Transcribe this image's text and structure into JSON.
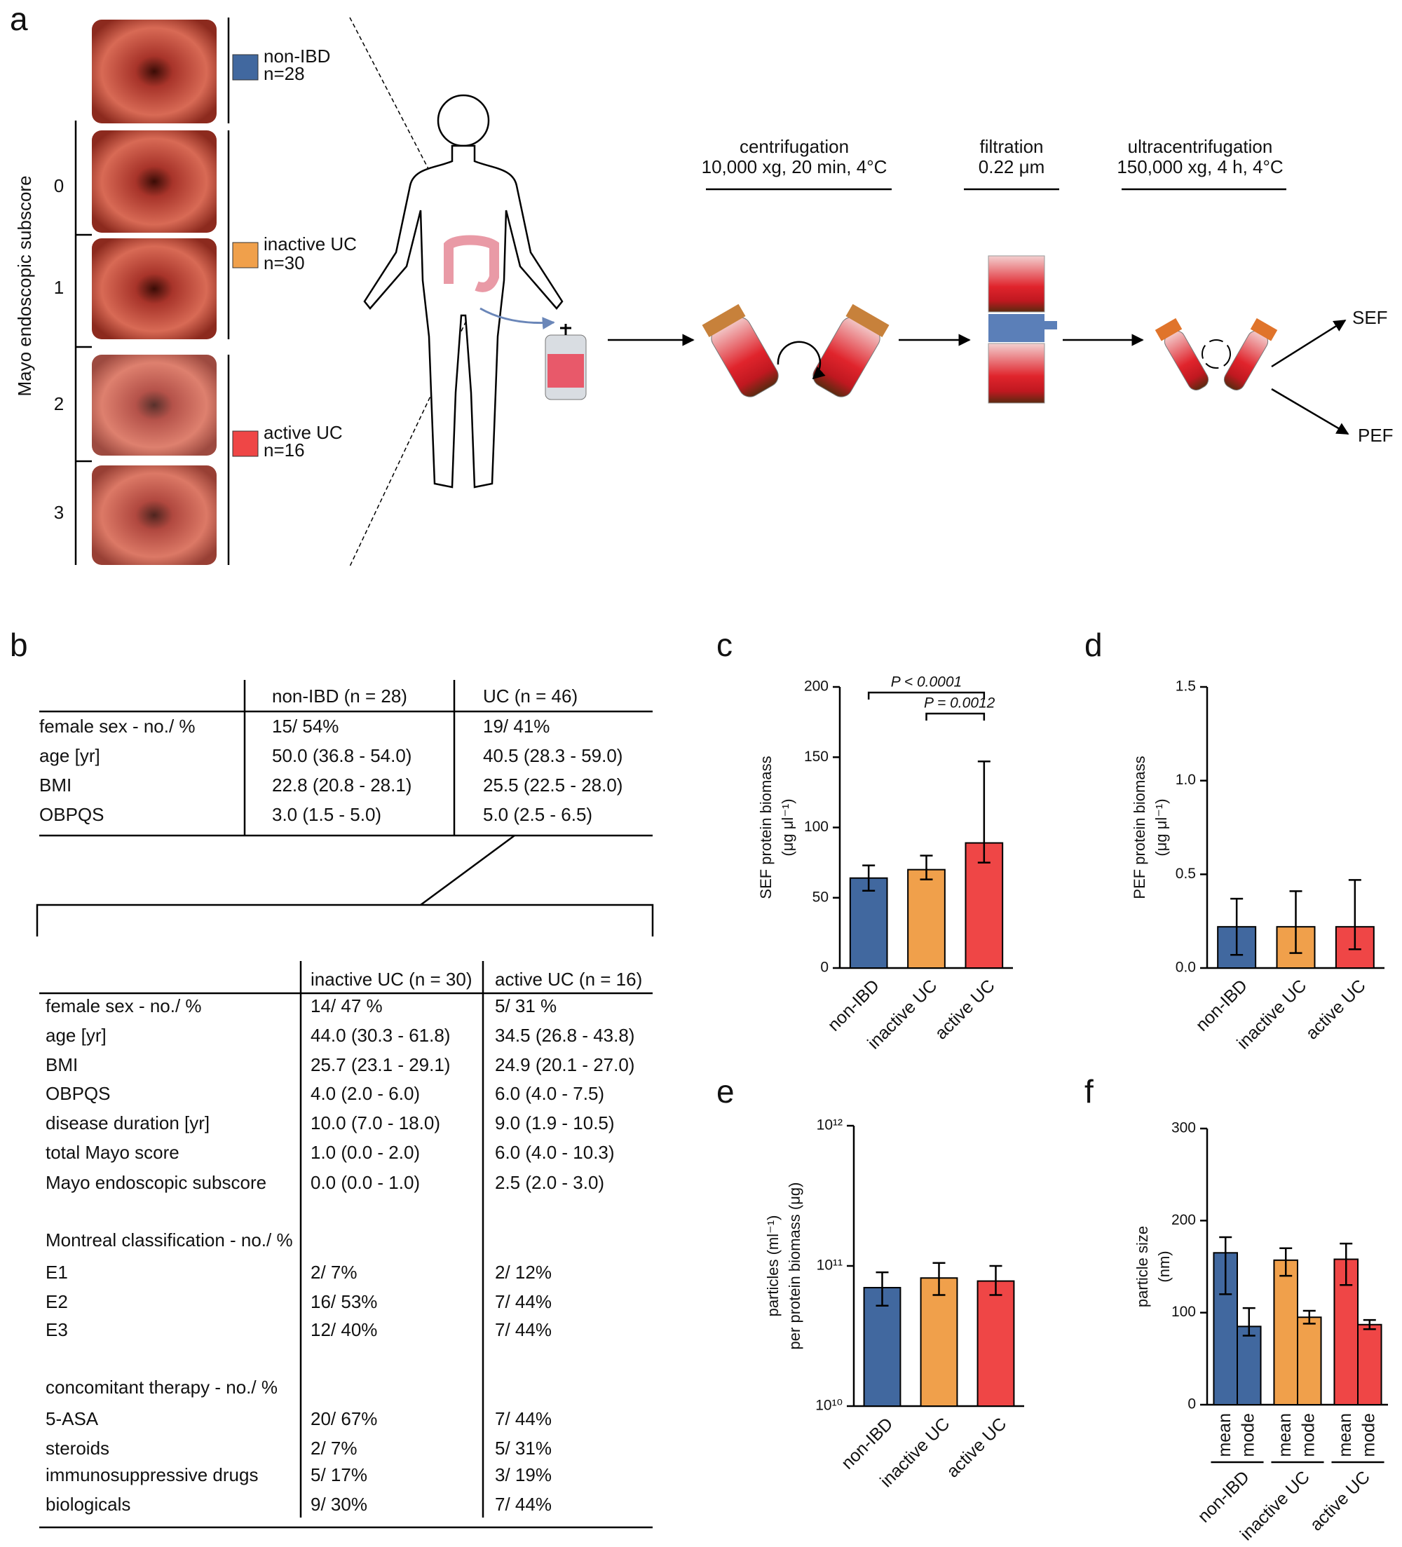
{
  "panel_labels": [
    "a",
    "b",
    "c",
    "d",
    "e",
    "f"
  ],
  "panel_a": {
    "axis_label": "Mayo endoscopic subscore",
    "scores": [
      "0",
      "1",
      "2",
      "3"
    ],
    "groups": [
      {
        "name": "non-IBD",
        "n": "n=28",
        "color": "#41689f"
      },
      {
        "name": "inactive UC",
        "n": "n=30",
        "color": "#f0a04b"
      },
      {
        "name": "active UC",
        "n": "n=16",
        "color": "#ef4646"
      }
    ],
    "steps": [
      {
        "title": "centrifugation",
        "detail": "10,000 xg, 20 min, 4°C"
      },
      {
        "title": "filtration",
        "detail": "0.22 μm"
      },
      {
        "title": "ultracentrifugation",
        "detail": "150,000 xg, 4 h, 4°C"
      }
    ],
    "outputs": [
      "SEF",
      "PEF"
    ]
  },
  "table_b": {
    "header": [
      "non-IBD (n = 28)",
      "UC (n = 46)"
    ],
    "rows": [
      [
        "female sex - no./ %",
        "15/ 54%",
        "19/ 41%"
      ],
      [
        "age [yr]",
        "50.0 (36.8 - 54.0)",
        "40.5 (28.3 - 59.0)"
      ],
      [
        "BMI",
        "22.8 (20.8 - 28.1)",
        "25.5 (22.5 - 28.0)"
      ],
      [
        "OBPQS",
        "3.0 (1.5 - 5.0)",
        "5.0 (2.5 - 6.5)"
      ]
    ],
    "sub_header": [
      "inactive UC (n = 30)",
      "active UC (n = 16)"
    ],
    "sub_rows": [
      [
        "female sex - no./ %",
        "14/ 47 %",
        "5/ 31 %"
      ],
      [
        "age [yr]",
        "44.0 (30.3 - 61.8)",
        "34.5 (26.8 - 43.8)"
      ],
      [
        "BMI",
        "25.7 (23.1 - 29.1)",
        "24.9 (20.1 - 27.0)"
      ],
      [
        "OBPQS",
        "4.0 (2.0 - 6.0)",
        "6.0 (4.0 - 7.5)"
      ],
      [
        "disease duration [yr]",
        "10.0 (7.0 - 18.0)",
        "9.0 (1.9 - 10.5)"
      ],
      [
        "total Mayo score",
        "1.0 (0.0 - 2.0)",
        "6.0 (4.0 - 10.3)"
      ],
      [
        "Mayo endoscopic subscore",
        "0.0 (0.0 - 1.0)",
        "2.5 (2.0 - 3.0)"
      ],
      [
        "Montreal classification - no./ %"
      ],
      [
        "E1",
        "2/ 7%",
        "2/ 12%"
      ],
      [
        "E2",
        "16/ 53%",
        "7/ 44%"
      ],
      [
        "E3",
        "12/ 40%",
        "7/ 44%"
      ],
      [
        "concomitant therapy - no./ %"
      ],
      [
        "5-ASA",
        "20/ 67%",
        "7/ 44%"
      ],
      [
        "steroids",
        "2/ 7%",
        "5/ 31%"
      ],
      [
        "immunosuppressive drugs",
        "5/ 17%",
        "3/ 19%"
      ],
      [
        "biologicals",
        "9/ 30%",
        "7/ 44%"
      ]
    ]
  },
  "chart_data": [
    {
      "type": "bar",
      "ylabel": [
        "SEF protein biomass",
        "(μg μl⁻¹)"
      ],
      "categories": [
        "non-IBD",
        "inactive UC",
        "active UC"
      ],
      "colors": [
        "#41689f",
        "#f0a04b",
        "#ef4646"
      ],
      "values": [
        64,
        70,
        89
      ],
      "whiskers": [
        [
          55,
          73
        ],
        [
          63,
          80
        ],
        [
          75,
          147
        ]
      ],
      "annotations": [
        "P < 0.0001",
        "P = 0.0012"
      ],
      "ylim": [
        0,
        200
      ],
      "yticks": [
        0,
        50,
        100,
        150,
        200
      ]
    },
    {
      "type": "bar",
      "ylabel": [
        "PEF protein biomass",
        "(μg μl⁻¹)"
      ],
      "categories": [
        "non-IBD",
        "inactive UC",
        "active UC"
      ],
      "colors": [
        "#41689f",
        "#f0a04b",
        "#ef4646"
      ],
      "values": [
        0.22,
        0.22,
        0.22
      ],
      "whiskers": [
        [
          0.07,
          0.37
        ],
        [
          0.08,
          0.41
        ],
        [
          0.1,
          0.47
        ]
      ],
      "ylim": [
        0,
        1.5
      ],
      "yticks": [
        {
          "value": 0,
          "label": "0.0"
        },
        {
          "value": 0.5,
          "label": "0.5"
        },
        {
          "value": 1,
          "label": "1.0"
        },
        {
          "value": 1.5,
          "label": "1.5"
        }
      ]
    },
    {
      "type": "bar",
      "ylabel": [
        "particles (ml⁻¹)",
        "per protein biomass (μg)"
      ],
      "categories": [
        "non-IBD",
        "inactive UC",
        "active UC"
      ],
      "colors": [
        "#41689f",
        "#f0a04b",
        "#ef4646"
      ],
      "values": [
        70000000000,
        82000000000,
        78000000000
      ],
      "whiskers": [
        [
          52000000000,
          90000000000
        ],
        [
          62000000000,
          105000000000
        ],
        [
          62000000000,
          100000000000
        ]
      ],
      "log_scale": true,
      "ylim": [
        10000000000,
        1000000000000
      ],
      "yticks": [
        {
          "value": 10000000000,
          "label": "10¹⁰"
        },
        {
          "value": 100000000000,
          "label": "10¹¹"
        },
        {
          "value": 1000000000000,
          "label": "10¹²"
        }
      ]
    },
    {
      "type": "grouped_bar",
      "ylabel": [
        "particle size",
        "(nm)"
      ],
      "categories": [
        "non-IBD",
        "inactive UC",
        "active UC"
      ],
      "colors": [
        "#41689f",
        "#f0a04b",
        "#ef4646"
      ],
      "series": [
        {
          "name": "mean",
          "values": [
            165,
            157,
            158
          ],
          "whiskers": [
            [
              120,
              182
            ],
            [
              140,
              170
            ],
            [
              130,
              175
            ]
          ]
        },
        {
          "name": "mode",
          "values": [
            85,
            95,
            87
          ],
          "whiskers": [
            [
              75,
              105
            ],
            [
              88,
              102
            ],
            [
              82,
              92
            ]
          ]
        }
      ],
      "ylim": [
        0,
        300
      ],
      "yticks": [
        0,
        100,
        200,
        300
      ]
    }
  ]
}
